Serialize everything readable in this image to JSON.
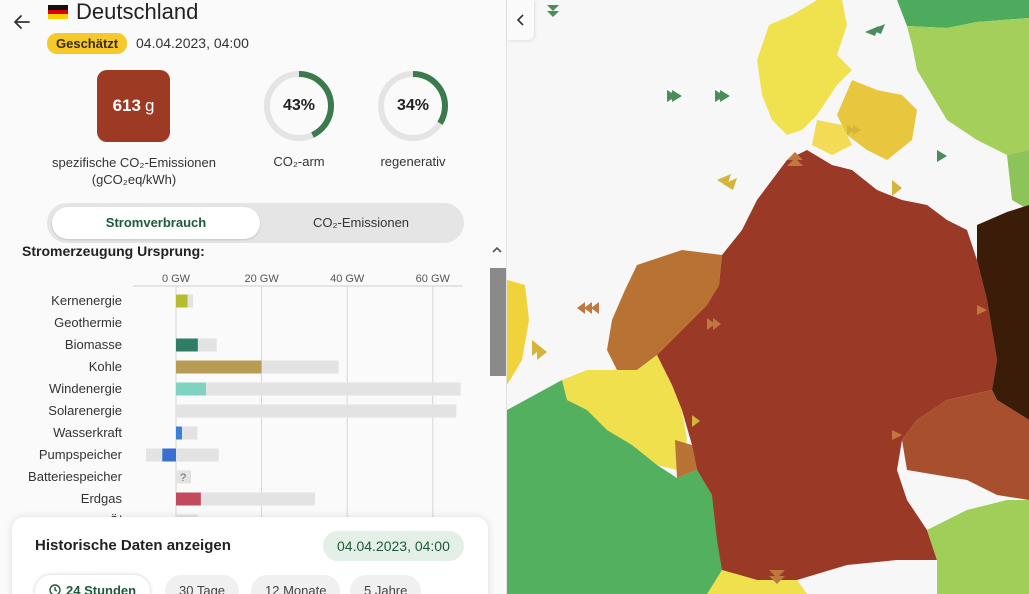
{
  "header": {
    "country": "Deutschland",
    "badge": "Geschätzt",
    "datetime": "04.04.2023, 04:00"
  },
  "colors": {
    "co2_box": "#9c3a23",
    "ring_accent": "#3b7a4c",
    "ring_track": "#e4e4e4",
    "badge": "#f6c92b"
  },
  "summary": {
    "co2_value": "613",
    "co2_unit": "g",
    "co2_label_line1": "spezifische CO₂-Emissionen",
    "co2_label_line2": "(gCO₂eq/kWh)",
    "low_carbon_pct": "43%",
    "low_carbon_fraction": 0.43,
    "low_carbon_label": "CO₂-arm",
    "renewable_pct": "34%",
    "renewable_fraction": 0.34,
    "renewable_label": "regenerativ"
  },
  "toggle": {
    "active": "Stromverbrauch",
    "inactive": "CO₂-Emissionen"
  },
  "section": {
    "title": "Stromerzeugung Ursprung:",
    "collapse_icon": "chevron-up-icon"
  },
  "chart_data": {
    "type": "bar",
    "orientation": "horizontal",
    "xlabel": "",
    "ylabel": "",
    "xlim": [
      -10,
      67
    ],
    "ticks": [
      0,
      20,
      40,
      60
    ],
    "tick_labels": [
      "0 GW",
      "20 GW",
      "40 GW",
      "60 GW"
    ],
    "grid": true,
    "categories": [
      "Kernenergie",
      "Geothermie",
      "Biomasse",
      "Kohle",
      "Windenergie",
      "Solarenergie",
      "Wasserkraft",
      "Pumpspeicher",
      "Batteriespeicher",
      "Erdgas"
    ],
    "values": [
      2.7,
      0,
      5.1,
      20,
      7,
      0,
      1.4,
      -3.2,
      0,
      5.8
    ],
    "capacity_pos": [
      4,
      0,
      9.5,
      38,
      66.5,
      65.5,
      5,
      10,
      3.5,
      32.5
    ],
    "capacity_neg": [
      0,
      0,
      0,
      0,
      0,
      0,
      0,
      -7,
      0,
      0
    ],
    "unknown_marker": [
      false,
      false,
      false,
      false,
      false,
      false,
      false,
      false,
      true,
      false
    ],
    "unknown_label": "?",
    "bar_colors": [
      "#b5bd2e",
      "#b5bd2e",
      "#2d7d67",
      "#b89b55",
      "#7fd3c0",
      "#f2d23a",
      "#3c7fd6",
      "#3a6fd0",
      "#888888",
      "#c14a5c"
    ],
    "partial_next_label": "Öl"
  },
  "history": {
    "title": "Historische Daten anzeigen",
    "date": "04.04.2023, 04:00",
    "ranges": [
      "24 Stunden",
      "30 Tage",
      "12 Monate",
      "5 Jahre"
    ],
    "active_range": "24 Stunden"
  }
}
